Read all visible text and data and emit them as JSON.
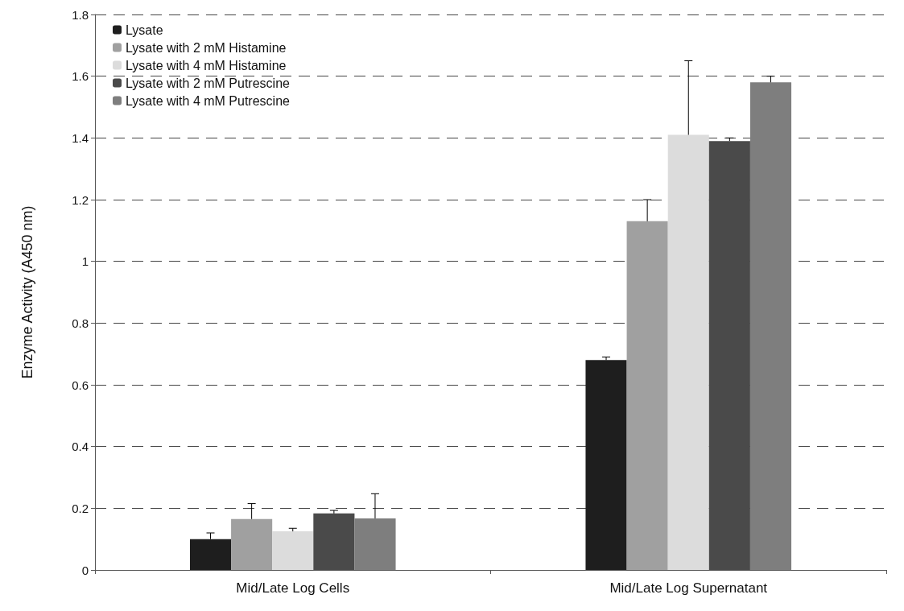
{
  "chart_data": {
    "type": "bar",
    "ylabel": "Enzyme Activity (A450 nm)",
    "categories": [
      "Mid/Late Log Cells",
      "Mid/Late Log Supernatant"
    ],
    "series": [
      {
        "name": "Lysate",
        "color": "#1e1e1e",
        "values": [
          0.1,
          0.68
        ],
        "errors": [
          0.02,
          0.01
        ]
      },
      {
        "name": "Lysate with 2 mM Histamine",
        "color": "#a0a0a0",
        "values": [
          0.165,
          1.13
        ],
        "errors": [
          0.05,
          0.07
        ]
      },
      {
        "name": "Lysate with 4 mM Histamine",
        "color": "#dcdcdc",
        "values": [
          0.125,
          1.41
        ],
        "errors": [
          0.01,
          0.24
        ]
      },
      {
        "name": "Lysate with 2 mM Putrescine",
        "color": "#4a4a4a",
        "values": [
          0.183,
          1.39
        ],
        "errors": [
          0.01,
          0.01
        ]
      },
      {
        "name": "Lysate with 4 mM Putrescine",
        "color": "#7e7e7e",
        "values": [
          0.167,
          1.58
        ],
        "errors": [
          0.08,
          0.02
        ]
      }
    ],
    "ylim": [
      0,
      1.8
    ],
    "yticks": [
      0,
      0.2,
      0.4,
      0.6,
      0.8,
      1,
      1.2,
      1.4,
      1.6,
      1.8
    ],
    "grid": "y",
    "legend": "top left"
  }
}
